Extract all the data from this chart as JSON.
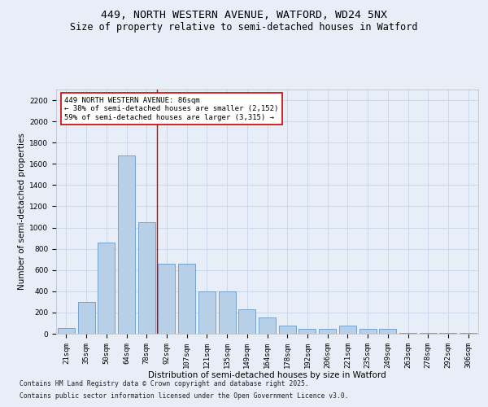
{
  "title1": "449, NORTH WESTERN AVENUE, WATFORD, WD24 5NX",
  "title2": "Size of property relative to semi-detached houses in Watford",
  "xlabel": "Distribution of semi-detached houses by size in Watford",
  "ylabel": "Number of semi-detached properties",
  "categories": [
    "21sqm",
    "35sqm",
    "50sqm",
    "64sqm",
    "78sqm",
    "92sqm",
    "107sqm",
    "121sqm",
    "135sqm",
    "149sqm",
    "164sqm",
    "178sqm",
    "192sqm",
    "206sqm",
    "221sqm",
    "235sqm",
    "249sqm",
    "263sqm",
    "278sqm",
    "292sqm",
    "306sqm"
  ],
  "values": [
    50,
    300,
    860,
    1680,
    1050,
    660,
    660,
    395,
    395,
    230,
    155,
    80,
    45,
    45,
    80,
    45,
    45,
    10,
    10,
    10,
    10
  ],
  "bar_color": "#b8cfe8",
  "bar_edge_color": "#6699cc",
  "grid_color": "#ccd8ec",
  "bg_color": "#e8eef8",
  "vline_color": "#cc0000",
  "annotation_text": "449 NORTH WESTERN AVENUE: 86sqm\n← 38% of semi-detached houses are smaller (2,152)\n59% of semi-detached houses are larger (3,315) →",
  "annotation_box_color": "#ffffff",
  "annotation_border_color": "#cc0000",
  "footer1": "Contains HM Land Registry data © Crown copyright and database right 2025.",
  "footer2": "Contains public sector information licensed under the Open Government Licence v3.0.",
  "ylim": [
    0,
    2300
  ],
  "yticks": [
    0,
    200,
    400,
    600,
    800,
    1000,
    1200,
    1400,
    1600,
    1800,
    2000,
    2200
  ],
  "title1_fontsize": 9.5,
  "title2_fontsize": 8.5,
  "axis_label_fontsize": 7.5,
  "tick_fontsize": 6.5,
  "footer_fontsize": 5.8,
  "annot_fontsize": 6.5
}
